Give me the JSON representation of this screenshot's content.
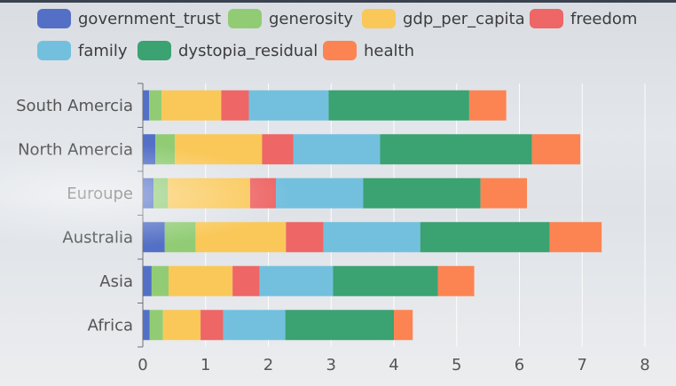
{
  "chart_data": {
    "type": "bar",
    "orientation": "horizontal",
    "stacked": true,
    "categories": [
      "Africa",
      "Asia",
      "Australia",
      "Euroupe",
      "North Amercia",
      "South Amercia"
    ],
    "series": [
      {
        "name": "government_trust",
        "color": "#5470c6",
        "values": [
          0.11,
          0.14,
          0.35,
          0.17,
          0.2,
          0.1
        ]
      },
      {
        "name": "generosity",
        "color": "#91cc75",
        "values": [
          0.21,
          0.27,
          0.49,
          0.23,
          0.31,
          0.2
        ]
      },
      {
        "name": "gdp_per_capita",
        "color": "#fac858",
        "values": [
          0.6,
          1.02,
          1.44,
          1.31,
          1.39,
          0.95
        ]
      },
      {
        "name": "freedom",
        "color": "#ee6666",
        "values": [
          0.36,
          0.43,
          0.6,
          0.41,
          0.5,
          0.44
        ]
      },
      {
        "name": "family",
        "color": "#73c0de",
        "values": [
          0.99,
          1.17,
          1.54,
          1.39,
          1.38,
          1.27
        ]
      },
      {
        "name": "dystopia_residual",
        "color": "#3ba272",
        "values": [
          1.73,
          1.67,
          2.06,
          1.87,
          2.42,
          2.24
        ]
      },
      {
        "name": "health",
        "color": "#fc8452",
        "values": [
          0.3,
          0.58,
          0.83,
          0.74,
          0.77,
          0.59
        ]
      }
    ],
    "xlim": [
      0,
      8
    ],
    "xticks": [
      0,
      1,
      2,
      3,
      4,
      5,
      6,
      7,
      8
    ],
    "grid": true,
    "legend_position": "top"
  }
}
